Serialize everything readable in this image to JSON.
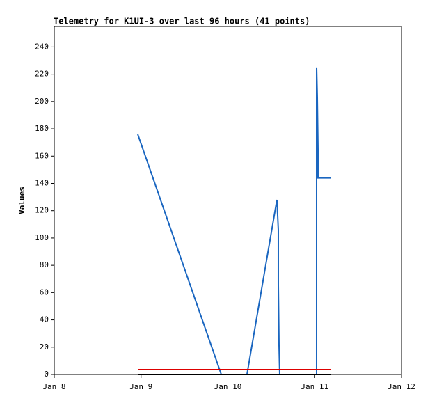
{
  "chart_data": {
    "type": "line",
    "title": "Telemetry for K1UI-3 over last 96 hours (41 points)",
    "y_label": "Values",
    "xlim": [
      0,
      4
    ],
    "xticks": [
      {
        "value": 0,
        "label": "Jan 8"
      },
      {
        "value": 1,
        "label": "Jan 9"
      },
      {
        "value": 2,
        "label": "Jan 10"
      },
      {
        "value": 3,
        "label": "Jan 11"
      },
      {
        "value": 4,
        "label": "Jan 12"
      }
    ],
    "ylim": [
      0,
      255
    ],
    "yticks": [
      0,
      20,
      40,
      60,
      80,
      100,
      120,
      140,
      160,
      180,
      200,
      220,
      240
    ],
    "series": [
      {
        "color": "#1a66c0",
        "x": [
          0.962,
          1.924,
          2.22,
          2.565,
          2.581,
          2.581,
          2.589,
          2.597,
          3.022,
          3.022,
          3.03,
          3.038,
          3.038,
          3.19
        ],
        "values": [
          176,
          0,
          0,
          128,
          106,
          66,
          22,
          0,
          0,
          225,
          203,
          165,
          144,
          144
        ]
      },
      {
        "color": "#dd0000",
        "x": [
          0.962,
          3.19
        ],
        "values": [
          3.6,
          3.6
        ]
      },
      {
        "color": "#000000",
        "x": [
          0.962,
          3.19
        ],
        "values": [
          0,
          0
        ]
      }
    ]
  }
}
